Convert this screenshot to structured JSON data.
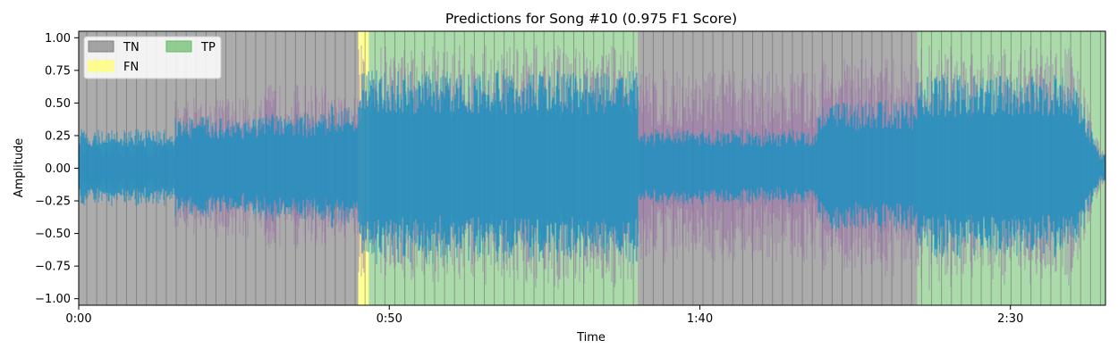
{
  "chart_data": {
    "type": "area",
    "title": "Predictions for Song #10 (0.975 F1 Score)",
    "xlabel": "Time",
    "ylabel": "Amplitude",
    "xlim": [
      0,
      165.3
    ],
    "ylim": [
      -1.05,
      1.05
    ],
    "x_ticks": [
      {
        "value": 0,
        "label": "0:00"
      },
      {
        "value": 50,
        "label": "0:50"
      },
      {
        "value": 100,
        "label": "1:40"
      },
      {
        "value": 150,
        "label": "2:30"
      }
    ],
    "y_ticks": [
      {
        "value": 1.0,
        "label": "1.00"
      },
      {
        "value": 0.75,
        "label": "0.75"
      },
      {
        "value": 0.5,
        "label": "0.50"
      },
      {
        "value": 0.25,
        "label": "0.25"
      },
      {
        "value": 0.0,
        "label": "0.00"
      },
      {
        "value": -0.25,
        "label": "−0.25"
      },
      {
        "value": -0.5,
        "label": "−0.50"
      },
      {
        "value": -0.75,
        "label": "−0.75"
      },
      {
        "value": -1.0,
        "label": "−1.00"
      }
    ],
    "grid": false,
    "legend": {
      "placement": "top-left",
      "entries": [
        {
          "label": "TN",
          "color": "#808080"
        },
        {
          "label": "FN",
          "color": "#ffff66"
        },
        {
          "label": "TP",
          "color": "#66bb66"
        }
      ]
    },
    "segments": [
      {
        "class": "TN",
        "start": 0,
        "end": 45.0
      },
      {
        "class": "FN",
        "start": 45.0,
        "end": 46.7
      },
      {
        "class": "TP",
        "start": 46.7,
        "end": 90.0
      },
      {
        "class": "TN",
        "start": 90.0,
        "end": 135.0
      },
      {
        "class": "TP",
        "start": 135.0,
        "end": 165.3
      }
    ],
    "beat_interval": 1.6,
    "envelope": [
      {
        "start": 0,
        "end": 15.5,
        "blue": 0.3,
        "purple": 0.2
      },
      {
        "start": 15.5,
        "end": 30,
        "blue": 0.4,
        "purple": 0.55
      },
      {
        "start": 30,
        "end": 40,
        "blue": 0.42,
        "purple": 0.65
      },
      {
        "start": 40,
        "end": 45,
        "blue": 0.5,
        "purple": 0.55
      },
      {
        "start": 45,
        "end": 90,
        "blue": 0.75,
        "purple": 0.95
      },
      {
        "start": 90,
        "end": 119,
        "blue": 0.3,
        "purple": 0.75
      },
      {
        "start": 119,
        "end": 135,
        "blue": 0.52,
        "purple": 0.85
      },
      {
        "start": 135,
        "end": 165.3,
        "blue": 0.72,
        "purple": 0.95
      }
    ],
    "colors": {
      "TN": "#808080",
      "FN": "#ffff66",
      "TP": "#66bb66",
      "wave_primary": "#1f8fc0",
      "wave_secondary": "#9a6ba8",
      "beat_line": "#555555"
    }
  }
}
